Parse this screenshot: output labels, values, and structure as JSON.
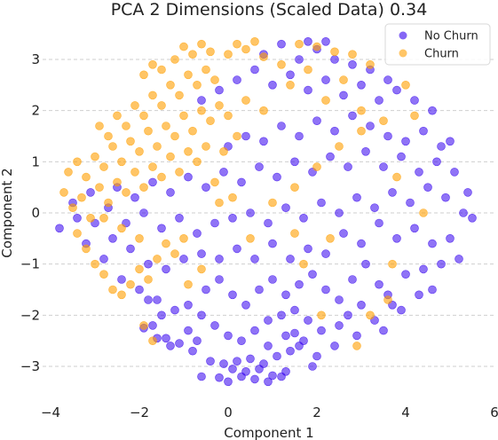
{
  "chart_data": {
    "type": "scatter",
    "title": "PCA  2 Dimensions (Scaled Data) 0.34",
    "xlabel": "Component 1",
    "ylabel": "Component 2",
    "xlim": [
      -4,
      6
    ],
    "ylim": [
      -3.5,
      3.4
    ],
    "xticks": [
      -4,
      -2,
      0,
      2,
      4,
      6
    ],
    "xtick_labels": [
      "−4",
      "−2",
      "0",
      "2",
      "4",
      "6"
    ],
    "yticks": [
      -3,
      -2,
      -1,
      0,
      1,
      2,
      3
    ],
    "ytick_labels": [
      "−3",
      "−2",
      "−1",
      "0",
      "1",
      "2",
      "3"
    ],
    "grid": "horizontal dashed",
    "legend_position": "top-right",
    "series": [
      {
        "name": "No Churn",
        "color": "#3300ee",
        "points": [
          [
            0.3,
            -3.2
          ],
          [
            0.6,
            -3.25
          ],
          [
            0.9,
            -3.3
          ],
          [
            1.2,
            -3.2
          ],
          [
            -0.2,
            -3.22
          ],
          [
            0.0,
            -3.3
          ],
          [
            1.0,
            -3.18
          ],
          [
            -0.4,
            -2.9
          ],
          [
            -0.1,
            -2.95
          ],
          [
            0.2,
            -2.9
          ],
          [
            0.5,
            -2.85
          ],
          [
            0.8,
            -2.95
          ],
          [
            1.1,
            -2.8
          ],
          [
            1.4,
            -2.7
          ],
          [
            1.7,
            -2.5
          ],
          [
            -0.8,
            -2.7
          ],
          [
            -1.1,
            -2.55
          ],
          [
            -1.4,
            -2.45
          ],
          [
            -1.7,
            -2.2
          ],
          [
            -1.9,
            -2.25
          ],
          [
            -1.2,
            -1.9
          ],
          [
            -0.9,
            -1.8
          ],
          [
            -0.6,
            -2.0
          ],
          [
            -0.3,
            -2.2
          ],
          [
            0.0,
            -2.4
          ],
          [
            0.3,
            -2.5
          ],
          [
            0.6,
            -2.3
          ],
          [
            0.9,
            -2.1
          ],
          [
            1.2,
            -2.0
          ],
          [
            1.5,
            -1.9
          ],
          [
            1.8,
            -2.1
          ],
          [
            2.1,
            -2.3
          ],
          [
            2.4,
            -2.6
          ],
          [
            2.0,
            -2.8
          ],
          [
            1.9,
            -3.0
          ],
          [
            -0.5,
            -1.5
          ],
          [
            -0.2,
            -1.3
          ],
          [
            0.1,
            -1.6
          ],
          [
            0.4,
            -1.8
          ],
          [
            0.7,
            -1.5
          ],
          [
            1.0,
            -1.3
          ],
          [
            1.3,
            -1.6
          ],
          [
            1.6,
            -1.4
          ],
          [
            1.9,
            -1.2
          ],
          [
            2.2,
            -1.5
          ],
          [
            2.5,
            -1.7
          ],
          [
            2.8,
            -1.3
          ],
          [
            3.1,
            -1.0
          ],
          [
            3.4,
            -1.4
          ],
          [
            3.7,
            -1.8
          ],
          [
            4.0,
            -1.2
          ],
          [
            4.4,
            -1.1
          ],
          [
            4.8,
            -1.0
          ],
          [
            5.2,
            -0.9
          ],
          [
            5.0,
            -0.5
          ],
          [
            4.6,
            -0.6
          ],
          [
            4.2,
            -0.3
          ],
          [
            3.8,
            -0.5
          ],
          [
            3.4,
            -0.2
          ],
          [
            3.0,
            -0.6
          ],
          [
            2.6,
            -0.4
          ],
          [
            2.2,
            -0.8
          ],
          [
            1.8,
            -0.7
          ],
          [
            1.4,
            -0.9
          ],
          [
            1.0,
            -0.6
          ],
          [
            0.6,
            -0.9
          ],
          [
            0.2,
            -0.7
          ],
          [
            -0.2,
            -0.9
          ],
          [
            -0.6,
            -0.8
          ],
          [
            -1.0,
            -0.9
          ],
          [
            -1.4,
            -1.1
          ],
          [
            -1.8,
            -1.0
          ],
          [
            -2.2,
            -0.7
          ],
          [
            -2.6,
            -0.5
          ],
          [
            -3.0,
            -0.2
          ],
          [
            -3.4,
            -0.1
          ],
          [
            -3.8,
            -0.3
          ],
          [
            -3.5,
            0.2
          ],
          [
            -3.1,
            0.4
          ],
          [
            -2.7,
            0.1
          ],
          [
            -2.3,
            -0.2
          ],
          [
            -1.9,
            0.0
          ],
          [
            -1.5,
            -0.3
          ],
          [
            -1.1,
            -0.1
          ],
          [
            -0.7,
            -0.4
          ],
          [
            -0.3,
            -0.2
          ],
          [
            0.1,
            -0.1
          ],
          [
            0.5,
            0.0
          ],
          [
            0.9,
            -0.2
          ],
          [
            1.3,
            0.1
          ],
          [
            1.7,
            -0.1
          ],
          [
            2.1,
            0.2
          ],
          [
            2.5,
            0.0
          ],
          [
            2.9,
            0.3
          ],
          [
            3.3,
            0.1
          ],
          [
            3.7,
            0.4
          ],
          [
            4.1,
            0.2
          ],
          [
            4.5,
            0.5
          ],
          [
            4.9,
            0.3
          ],
          [
            5.3,
            0.0
          ],
          [
            5.5,
            -0.1
          ],
          [
            5.4,
            0.4
          ],
          [
            5.1,
            0.8
          ],
          [
            4.7,
            1.0
          ],
          [
            4.3,
            0.8
          ],
          [
            3.9,
            1.1
          ],
          [
            3.5,
            0.9
          ],
          [
            3.1,
            1.2
          ],
          [
            2.7,
            0.9
          ],
          [
            2.3,
            1.1
          ],
          [
            1.9,
            0.8
          ],
          [
            1.5,
            1.0
          ],
          [
            1.1,
            0.7
          ],
          [
            0.7,
            0.9
          ],
          [
            0.3,
            0.6
          ],
          [
            -0.1,
            0.8
          ],
          [
            -0.5,
            0.5
          ],
          [
            -0.9,
            0.7
          ],
          [
            -1.3,
            0.4
          ],
          [
            -1.7,
            0.6
          ],
          [
            -2.1,
            0.3
          ],
          [
            -2.5,
            0.5
          ],
          [
            0.0,
            1.3
          ],
          [
            0.4,
            1.5
          ],
          [
            0.8,
            1.4
          ],
          [
            1.2,
            1.7
          ],
          [
            1.6,
            1.5
          ],
          [
            2.0,
            1.8
          ],
          [
            2.4,
            1.6
          ],
          [
            2.8,
            1.9
          ],
          [
            3.2,
            1.7
          ],
          [
            3.6,
            1.5
          ],
          [
            4.0,
            1.4
          ],
          [
            4.4,
            1.6
          ],
          [
            4.8,
            1.3
          ],
          [
            5.0,
            1.4
          ],
          [
            4.6,
            2.0
          ],
          [
            4.2,
            2.2
          ],
          [
            3.8,
            2.4
          ],
          [
            3.4,
            2.2
          ],
          [
            3.0,
            2.5
          ],
          [
            2.6,
            2.3
          ],
          [
            2.2,
            2.6
          ],
          [
            1.8,
            2.4
          ],
          [
            1.4,
            2.7
          ],
          [
            1.0,
            2.5
          ],
          [
            0.6,
            2.8
          ],
          [
            0.2,
            2.6
          ],
          [
            -0.2,
            2.4
          ],
          [
            -0.6,
            2.2
          ],
          [
            1.6,
            3.0
          ],
          [
            2.0,
            3.2
          ],
          [
            2.4,
            3.0
          ],
          [
            2.8,
            2.9
          ],
          [
            3.2,
            2.8
          ],
          [
            3.6,
            2.6
          ],
          [
            1.2,
            3.3
          ],
          [
            1.8,
            3.35
          ],
          [
            0.8,
            3.1
          ],
          [
            2.2,
            3.35
          ],
          [
            -2.0,
            -1.5
          ],
          [
            -1.6,
            -1.7
          ],
          [
            -2.4,
            -1.3
          ],
          [
            -2.8,
            -0.9
          ],
          [
            -3.2,
            -0.6
          ],
          [
            0.9,
            -2.6
          ],
          [
            1.3,
            -2.4
          ],
          [
            1.6,
            -2.6
          ],
          [
            -1.5,
            -2.0
          ],
          [
            -0.7,
            -2.5
          ],
          [
            2.7,
            -2.0
          ],
          [
            3.0,
            -1.8
          ],
          [
            3.3,
            -2.1
          ],
          [
            3.6,
            -1.6
          ],
          [
            3.9,
            -1.9
          ],
          [
            4.3,
            -1.6
          ],
          [
            4.6,
            -1.5
          ],
          [
            2.9,
            -2.4
          ],
          [
            2.5,
            -2.2
          ],
          [
            3.5,
            -2.3
          ],
          [
            0.1,
            -3.05
          ],
          [
            0.4,
            -3.1
          ],
          [
            0.7,
            -3.05
          ],
          [
            -0.6,
            -3.2
          ],
          [
            1.3,
            -3.1
          ],
          [
            1.5,
            -2.35
          ],
          [
            -0.9,
            -2.3
          ],
          [
            -1.3,
            -2.6
          ],
          [
            -1.6,
            -2.45
          ],
          [
            -1.8,
            -1.7
          ]
        ]
      },
      {
        "name": "Churn",
        "color": "#ff9f00",
        "points": [
          [
            -3.6,
            0.8
          ],
          [
            -3.4,
            1.0
          ],
          [
            -3.2,
            0.7
          ],
          [
            -3.0,
            1.1
          ],
          [
            -2.8,
            0.9
          ],
          [
            -2.6,
            1.3
          ],
          [
            -2.4,
            1.0
          ],
          [
            -2.2,
            1.4
          ],
          [
            -2.0,
            1.2
          ],
          [
            -1.8,
            1.6
          ],
          [
            -1.6,
            1.3
          ],
          [
            -1.4,
            1.7
          ],
          [
            -1.2,
            1.5
          ],
          [
            -1.0,
            1.9
          ],
          [
            -0.8,
            1.6
          ],
          [
            -0.6,
            2.0
          ],
          [
            -0.4,
            1.8
          ],
          [
            -0.2,
            2.1
          ],
          [
            0.0,
            1.9
          ],
          [
            -3.7,
            0.4
          ],
          [
            -3.5,
            0.1
          ],
          [
            -3.3,
            0.3
          ],
          [
            -3.1,
            -0.1
          ],
          [
            -2.9,
            0.5
          ],
          [
            -2.7,
            0.2
          ],
          [
            -2.5,
            0.6
          ],
          [
            -2.3,
            0.4
          ],
          [
            -2.1,
            0.8
          ],
          [
            -1.9,
            0.5
          ],
          [
            -1.7,
            0.9
          ],
          [
            -1.5,
            0.7
          ],
          [
            -1.3,
            1.1
          ],
          [
            -1.1,
            0.8
          ],
          [
            -0.9,
            1.2
          ],
          [
            -0.7,
            1.0
          ],
          [
            -0.5,
            1.3
          ],
          [
            -2.9,
            1.7
          ],
          [
            -2.7,
            1.5
          ],
          [
            -2.5,
            1.9
          ],
          [
            -2.3,
            1.7
          ],
          [
            -2.1,
            2.1
          ],
          [
            -1.9,
            1.9
          ],
          [
            -1.7,
            2.3
          ],
          [
            -1.5,
            2.1
          ],
          [
            -1.3,
            2.5
          ],
          [
            -1.1,
            2.3
          ],
          [
            -0.9,
            2.7
          ],
          [
            -0.7,
            2.5
          ],
          [
            -0.5,
            2.8
          ],
          [
            -0.3,
            2.6
          ],
          [
            -1.9,
            2.7
          ],
          [
            -1.7,
            2.9
          ],
          [
            -1.5,
            2.8
          ],
          [
            -1.2,
            3.0
          ],
          [
            -0.8,
            3.1
          ],
          [
            -0.4,
            3.15
          ],
          [
            0.0,
            3.1
          ],
          [
            0.4,
            3.2
          ],
          [
            0.8,
            3.05
          ],
          [
            1.2,
            2.9
          ],
          [
            -1.0,
            3.25
          ],
          [
            -0.6,
            3.3
          ],
          [
            0.2,
            3.3
          ],
          [
            0.6,
            3.35
          ],
          [
            1.6,
            3.3
          ],
          [
            2.0,
            3.25
          ],
          [
            2.4,
            3.15
          ],
          [
            2.8,
            3.1
          ],
          [
            3.2,
            2.9
          ],
          [
            1.4,
            2.5
          ],
          [
            1.8,
            2.8
          ],
          [
            2.2,
            2.2
          ],
          [
            2.6,
            2.6
          ],
          [
            3.0,
            2.0
          ],
          [
            0.4,
            2.2
          ],
          [
            0.8,
            2.0
          ],
          [
            0.2,
            1.5
          ],
          [
            -0.1,
            1.2
          ],
          [
            -0.3,
            0.6
          ],
          [
            0.1,
            0.3
          ],
          [
            -3.4,
            -0.4
          ],
          [
            -3.2,
            -0.7
          ],
          [
            -3.0,
            -1.0
          ],
          [
            -2.8,
            -1.2
          ],
          [
            -2.6,
            -1.5
          ],
          [
            -2.4,
            -1.6
          ],
          [
            -2.2,
            -1.4
          ],
          [
            -2.0,
            -1.1
          ],
          [
            -1.8,
            -1.3
          ],
          [
            -1.6,
            -0.9
          ],
          [
            -1.4,
            -0.6
          ],
          [
            -1.2,
            -0.8
          ],
          [
            -1.0,
            -0.5
          ],
          [
            -2.0,
            -0.5
          ],
          [
            -2.4,
            -0.3
          ],
          [
            -2.8,
            -0.1
          ],
          [
            -1.7,
            -2.5
          ],
          [
            -1.9,
            -2.2
          ],
          [
            -0.6,
            -1.1
          ],
          [
            -0.9,
            -1.4
          ],
          [
            1.0,
            0.2
          ],
          [
            1.5,
            0.5
          ],
          [
            2.0,
            0.9
          ],
          [
            2.5,
            1.3
          ],
          [
            3.0,
            1.6
          ],
          [
            3.5,
            1.8
          ],
          [
            4.0,
            2.5
          ],
          [
            4.2,
            1.9
          ],
          [
            3.8,
            0.7
          ],
          [
            4.4,
            0.0
          ],
          [
            2.3,
            -0.5
          ],
          [
            1.7,
            -1.0
          ],
          [
            3.6,
            -1.7
          ],
          [
            3.2,
            -2.0
          ],
          [
            2.9,
            -2.6
          ],
          [
            1.5,
            -0.4
          ],
          [
            0.5,
            -0.5
          ],
          [
            -0.2,
            0.2
          ],
          [
            2.1,
            -2.0
          ],
          [
            3.7,
            -1.0
          ]
        ]
      }
    ]
  }
}
